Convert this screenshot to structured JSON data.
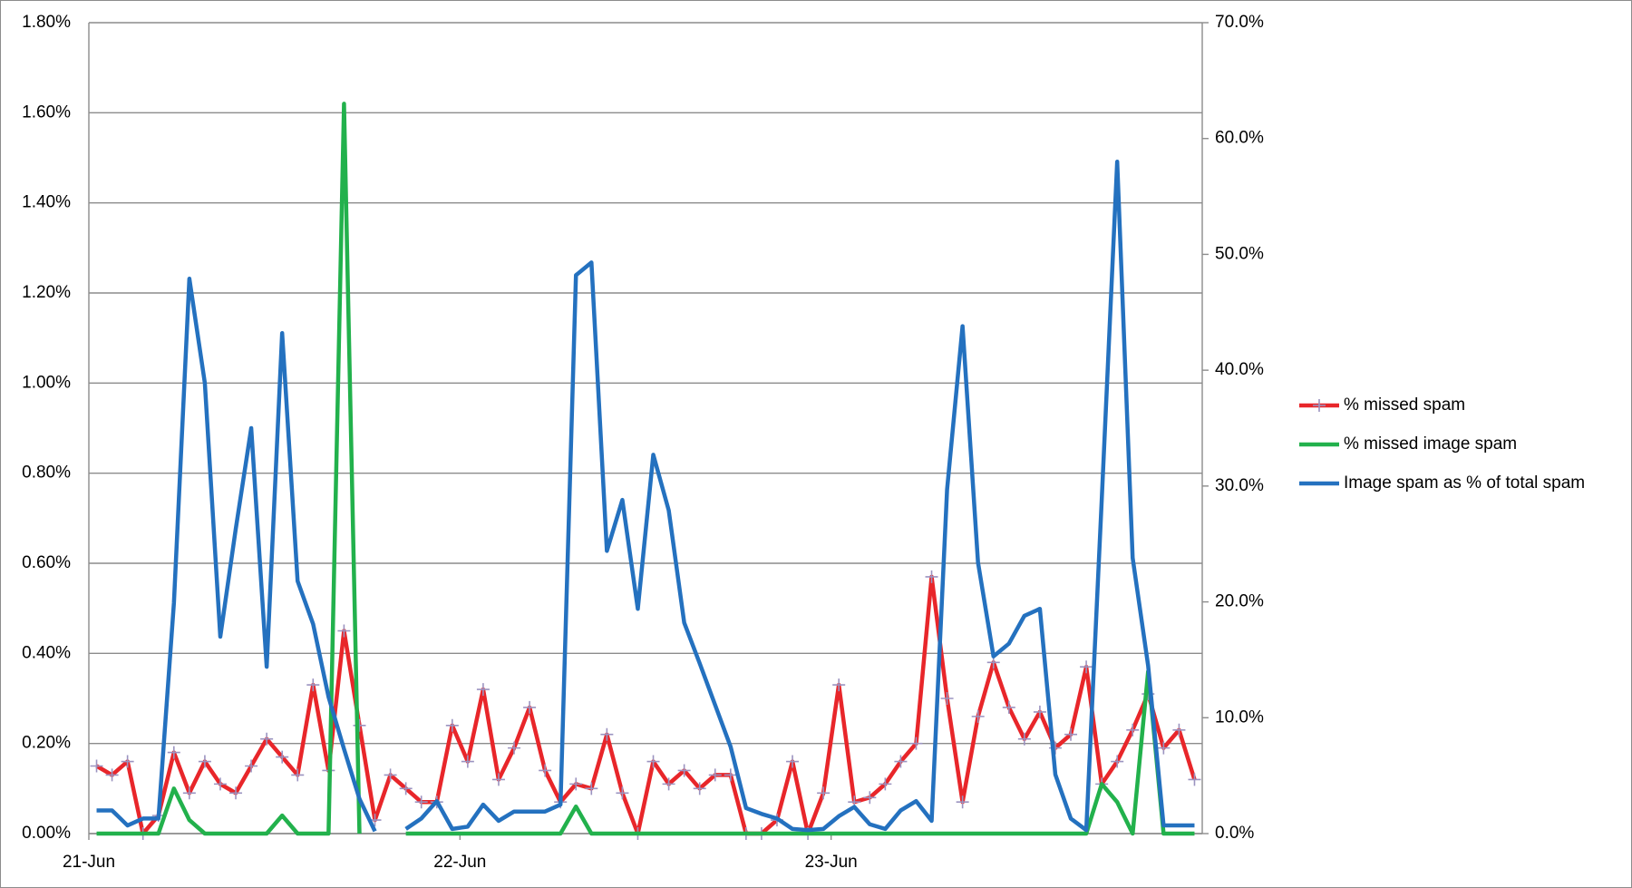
{
  "chart_data": {
    "type": "line",
    "categories": [
      "21-Jun",
      null,
      null,
      null,
      null,
      null,
      null,
      null,
      null,
      null,
      null,
      null,
      null,
      null,
      null,
      null,
      null,
      null,
      null,
      null,
      null,
      null,
      null,
      null,
      "22-Jun",
      null,
      null,
      null,
      null,
      null,
      null,
      null,
      null,
      null,
      null,
      null,
      null,
      null,
      null,
      null,
      null,
      null,
      null,
      null,
      null,
      null,
      null,
      null,
      "23-Jun",
      null,
      null,
      null,
      null,
      null,
      null,
      null,
      null,
      null,
      null,
      null,
      null,
      null,
      null,
      null,
      null,
      null,
      null,
      null,
      null,
      null,
      null,
      null
    ],
    "series": [
      {
        "name": "% missed spam",
        "color": "#e8262a",
        "marker": "plus",
        "marker_color": "#9b93c0",
        "values": [
          0.15,
          0.13,
          0.16,
          0.0,
          0.04,
          0.18,
          0.09,
          0.16,
          0.11,
          0.09,
          0.15,
          0.21,
          0.17,
          0.13,
          0.33,
          0.14,
          0.45,
          0.24,
          0.03,
          0.13,
          0.1,
          0.07,
          0.07,
          0.24,
          0.16,
          0.32,
          0.12,
          0.19,
          0.28,
          0.14,
          0.07,
          0.11,
          0.1,
          0.22,
          0.09,
          0.0,
          0.16,
          0.11,
          0.14,
          0.1,
          0.13,
          0.13,
          0.0,
          0.0,
          0.03,
          0.16,
          0.0,
          0.09,
          0.33,
          0.07,
          0.08,
          0.11,
          0.16,
          0.2,
          0.57,
          0.3,
          0.07,
          0.26,
          0.38,
          0.28,
          0.21,
          0.27,
          0.19,
          0.22,
          0.37,
          0.11,
          0.16,
          0.23,
          0.31,
          0.19,
          0.23,
          0.12
        ]
      },
      {
        "name": "% missed image spam",
        "color": "#22b14c",
        "values": [
          0,
          0,
          0,
          0,
          0,
          0.1,
          0.03,
          0,
          0,
          0,
          0,
          0,
          0.04,
          0,
          0,
          0,
          1.62,
          0,
          null,
          null,
          0,
          0,
          0,
          0,
          0,
          0,
          0,
          0,
          0,
          0,
          0,
          0.06,
          0,
          0,
          0,
          0,
          0,
          0,
          0,
          0,
          0,
          0,
          0,
          0,
          0,
          0,
          0,
          0,
          0,
          0,
          0,
          0,
          0,
          0,
          0,
          0,
          0,
          0,
          0,
          0,
          0,
          0,
          0,
          0,
          0,
          0.11,
          0.07,
          0,
          0.36,
          0,
          0,
          0
        ]
      },
      {
        "name": "Image spam as % of total spam",
        "color": "#2471bf",
        "axis": "y2",
        "values": [
          2.0,
          2.0,
          0.7,
          1.3,
          1.3,
          19.9,
          47.9,
          38.9,
          17.0,
          26.3,
          35.0,
          14.4,
          43.2,
          21.8,
          18.1,
          11.8,
          7.3,
          3.0,
          0.2,
          null,
          0.4,
          1.3,
          2.8,
          0.4,
          0.6,
          2.5,
          1.1,
          1.9,
          1.9,
          1.9,
          2.5,
          48.2,
          49.3,
          24.4,
          28.8,
          19.4,
          32.7,
          27.9,
          18.2,
          14.7,
          11.1,
          7.5,
          2.2,
          1.7,
          1.3,
          0.4,
          0.3,
          0.4,
          1.5,
          2.3,
          0.8,
          0.4,
          2.0,
          2.8,
          1.1,
          29.7,
          43.8,
          23.4,
          15.3,
          16.4,
          18.8,
          19.4,
          5.1,
          1.3,
          0.3,
          28.8,
          58.0,
          23.8,
          14.5,
          0.7,
          0.7,
          0.7
        ]
      }
    ],
    "ylim": [
      0,
      1.8
    ],
    "yticks": [
      {
        "value": 0,
        "label": "0.00%"
      },
      {
        "value": 0.2,
        "label": "0.20%"
      },
      {
        "value": 0.4,
        "label": "0.40%"
      },
      {
        "value": 0.6,
        "label": "0.60%"
      },
      {
        "value": 0.8,
        "label": "0.80%"
      },
      {
        "value": 1.0,
        "label": "1.00%"
      },
      {
        "value": 1.2,
        "label": "1.20%"
      },
      {
        "value": 1.4,
        "label": "1.40%"
      },
      {
        "value": 1.6,
        "label": "1.60%"
      },
      {
        "value": 1.8,
        "label": "1.80%"
      }
    ],
    "y2lim": [
      0,
      70
    ],
    "y2ticks": [
      {
        "value": 0,
        "label": "0.0%"
      },
      {
        "value": 10,
        "label": "10.0%"
      },
      {
        "value": 20,
        "label": "20.0%"
      },
      {
        "value": 30,
        "label": "30.0%"
      },
      {
        "value": 40,
        "label": "40.0%"
      },
      {
        "value": 50,
        "label": "50.0%"
      },
      {
        "value": 60,
        "label": "60.0%"
      },
      {
        "value": 70,
        "label": "70.0%"
      }
    ],
    "grid": true,
    "legend": "right"
  }
}
